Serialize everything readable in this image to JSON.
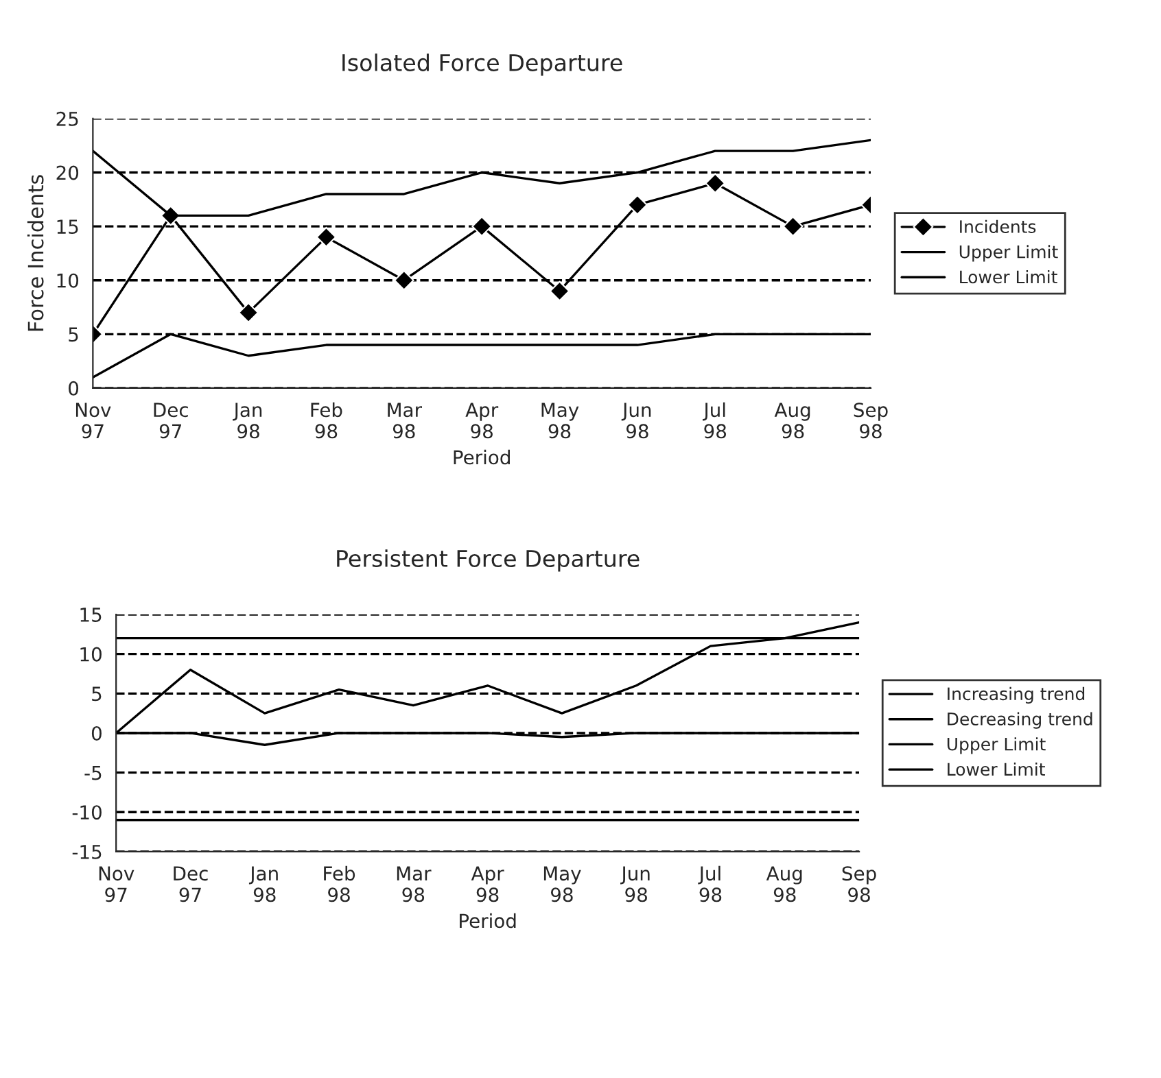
{
  "chart_data": [
    {
      "type": "line",
      "title": "Isolated Force Departure",
      "xlabel": "Period",
      "ylabel": "Force Incidents",
      "categories": [
        "Nov\n97",
        "Dec\n97",
        "Jan\n98",
        "Feb\n98",
        "Mar\n98",
        "Apr\n98",
        "May\n98",
        "Jun\n98",
        "Jul\n98",
        "Aug\n98",
        "Sep\n98"
      ],
      "series": [
        {
          "name": "Incidents",
          "color": "#000000",
          "marker": "diamond",
          "values": [
            5,
            16,
            7,
            14,
            10,
            15,
            9,
            17,
            19,
            15,
            17
          ]
        },
        {
          "name": "Upper Limit",
          "color": "#000000",
          "values": [
            22,
            16,
            16,
            18,
            18,
            20,
            19,
            20,
            22,
            22,
            23
          ]
        },
        {
          "name": "Lower Limit",
          "color": "#000000",
          "values": [
            1,
            5,
            3,
            4,
            4,
            4,
            4,
            4,
            5,
            5,
            5
          ]
        }
      ],
      "ylim": [
        0,
        25
      ],
      "yticks": [
        0,
        5,
        10,
        15,
        20,
        25
      ],
      "grid": "y",
      "legend": "right"
    },
    {
      "type": "line",
      "title": "Persistent Force Departure",
      "xlabel": "Period",
      "categories": [
        "Nov\n97",
        "Dec\n97",
        "Jan\n98",
        "Feb\n98",
        "Mar\n98",
        "Apr\n98",
        "May\n98",
        "Jun\n98",
        "Jul\n98",
        "Aug\n98",
        "Sep\n98"
      ],
      "series": [
        {
          "name": "Increasing trend",
          "color": "#000000",
          "values": [
            0,
            8,
            2.5,
            5.5,
            3.5,
            6,
            2.5,
            6,
            11,
            12,
            14
          ]
        },
        {
          "name": "Decreasing trend",
          "color": "#000000",
          "values": [
            0,
            0,
            -1.5,
            0,
            0,
            0,
            -0.5,
            0,
            0,
            0,
            0
          ]
        },
        {
          "name": "Upper Limit",
          "color": "#000000",
          "values": [
            12,
            12,
            12,
            12,
            12,
            12,
            12,
            12,
            12,
            12,
            12
          ]
        },
        {
          "name": "Lower Limit",
          "color": "#000000",
          "values": [
            -11,
            -11,
            -11,
            -11,
            -11,
            -11,
            -11,
            -11,
            -11,
            -11,
            -11
          ]
        }
      ],
      "ylim": [
        -15,
        15
      ],
      "yticks": [
        -15,
        -10,
        -5,
        0,
        5,
        10,
        15
      ],
      "grid": "y",
      "legend": "right"
    }
  ]
}
